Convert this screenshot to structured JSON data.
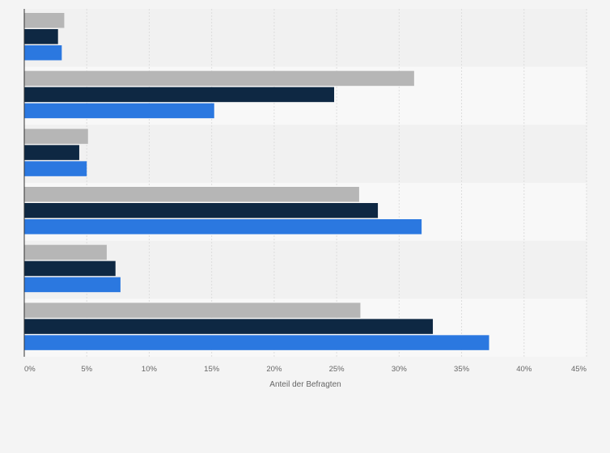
{
  "chart_data": {
    "type": "bar",
    "orientation": "horizontal",
    "title": "",
    "xlabel": "Anteil der Befragten",
    "ylabel": "",
    "xlim": [
      0,
      45
    ],
    "x_ticks": [
      "0%",
      "5%",
      "10%",
      "15%",
      "20%",
      "25%",
      "30%",
      "35%",
      "40%",
      "45%"
    ],
    "grid": "vertical",
    "legend": "none",
    "categories": [
      "",
      "",
      "",
      "",
      "",
      ""
    ],
    "series": [
      {
        "color": "#b6b6b6",
        "values": [
          3.2,
          31.2,
          5.1,
          26.8,
          6.6,
          26.9
        ]
      },
      {
        "color": "#0e2843",
        "values": [
          2.7,
          24.8,
          4.4,
          28.3,
          7.3,
          32.7
        ]
      },
      {
        "color": "#2b78e0",
        "values": [
          3.0,
          15.2,
          5.0,
          31.8,
          7.7,
          37.2
        ]
      }
    ]
  }
}
